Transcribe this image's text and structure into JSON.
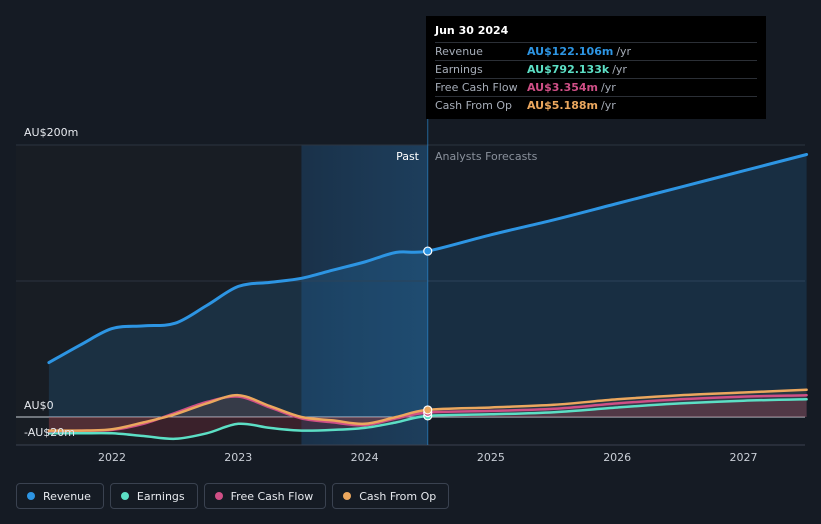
{
  "chart_data": {
    "type": "line",
    "y_axis": {
      "top_label": "AU$200m",
      "zero_label": "AU$0",
      "neg_label": "-AU$20m",
      "ylim": [
        -20,
        200
      ]
    },
    "x_ticks": [
      {
        "label": "2022",
        "x": 2022.0
      },
      {
        "label": "2023",
        "x": 2023.0
      },
      {
        "label": "2024",
        "x": 2024.0
      },
      {
        "label": "2025",
        "x": 2025.0
      },
      {
        "label": "2026",
        "x": 2026.0
      },
      {
        "label": "2027",
        "x": 2027.0
      }
    ],
    "divider_x": 2024.5,
    "forecast_end_x": 2027.5,
    "past_label": "Past",
    "forecast_label": "Analysts Forecasts",
    "series": [
      {
        "name": "Revenue",
        "color": "#2d95e3",
        "points": [
          [
            2021.5,
            40
          ],
          [
            2021.75,
            53
          ],
          [
            2022.0,
            65
          ],
          [
            2022.25,
            67
          ],
          [
            2022.5,
            69
          ],
          [
            2022.75,
            82
          ],
          [
            2023.0,
            96
          ],
          [
            2023.25,
            99
          ],
          [
            2023.5,
            102
          ],
          [
            2023.75,
            108
          ],
          [
            2024.0,
            114
          ],
          [
            2024.25,
            121
          ],
          [
            2024.5,
            122
          ],
          [
            2025.0,
            134
          ],
          [
            2025.5,
            145
          ],
          [
            2026.0,
            157
          ],
          [
            2026.5,
            169
          ],
          [
            2027.0,
            181
          ],
          [
            2027.5,
            193
          ]
        ]
      },
      {
        "name": "Earnings",
        "color": "#5cdfc5",
        "points": [
          [
            2021.5,
            -12
          ],
          [
            2021.75,
            -12
          ],
          [
            2022.0,
            -12
          ],
          [
            2022.25,
            -14
          ],
          [
            2022.5,
            -16
          ],
          [
            2022.75,
            -12
          ],
          [
            2023.0,
            -5
          ],
          [
            2023.25,
            -8
          ],
          [
            2023.5,
            -10
          ],
          [
            2023.75,
            -9.5
          ],
          [
            2024.0,
            -8
          ],
          [
            2024.25,
            -4
          ],
          [
            2024.5,
            0.8
          ],
          [
            2025.0,
            2
          ],
          [
            2025.5,
            3.5
          ],
          [
            2026.0,
            7
          ],
          [
            2026.5,
            10
          ],
          [
            2027.0,
            12
          ],
          [
            2027.5,
            13
          ]
        ]
      },
      {
        "name": "Free Cash Flow",
        "color": "#cf4f86",
        "points": [
          [
            2021.5,
            -10.5
          ],
          [
            2021.75,
            -10
          ],
          [
            2022.0,
            -9.5
          ],
          [
            2022.25,
            -5
          ],
          [
            2022.5,
            3
          ],
          [
            2022.75,
            11
          ],
          [
            2023.0,
            15
          ],
          [
            2023.25,
            7
          ],
          [
            2023.5,
            -1
          ],
          [
            2023.75,
            -4
          ],
          [
            2024.0,
            -6
          ],
          [
            2024.25,
            -1
          ],
          [
            2024.5,
            3.3
          ],
          [
            2025.0,
            4.5
          ],
          [
            2025.5,
            6
          ],
          [
            2026.0,
            10
          ],
          [
            2026.5,
            13
          ],
          [
            2027.0,
            15
          ],
          [
            2027.5,
            16
          ]
        ]
      },
      {
        "name": "Cash From Op",
        "color": "#eba75e",
        "points": [
          [
            2021.5,
            -10
          ],
          [
            2021.75,
            -10
          ],
          [
            2022.0,
            -9
          ],
          [
            2022.25,
            -4
          ],
          [
            2022.5,
            2
          ],
          [
            2022.75,
            10
          ],
          [
            2023.0,
            16
          ],
          [
            2023.25,
            8
          ],
          [
            2023.5,
            0
          ],
          [
            2023.75,
            -2.5
          ],
          [
            2024.0,
            -5
          ],
          [
            2024.25,
            0
          ],
          [
            2024.5,
            5.2
          ],
          [
            2025.0,
            7
          ],
          [
            2025.5,
            9
          ],
          [
            2026.0,
            13
          ],
          [
            2026.5,
            16
          ],
          [
            2027.0,
            18
          ],
          [
            2027.5,
            20
          ]
        ]
      }
    ],
    "tooltip": {
      "date": "Jun 30 2024",
      "rows": [
        {
          "name": "Revenue",
          "value": "AU$122.106m",
          "unit": "/yr",
          "color": "#2d95e3"
        },
        {
          "name": "Earnings",
          "value": "AU$792.133k",
          "unit": "/yr",
          "color": "#5cdfc5"
        },
        {
          "name": "Free Cash Flow",
          "value": "AU$3.354m",
          "unit": "/yr",
          "color": "#cf4f86"
        },
        {
          "name": "Cash From Op",
          "value": "AU$5.188m",
          "unit": "/yr",
          "color": "#eba75e"
        }
      ]
    },
    "legend": [
      {
        "name": "Revenue",
        "color": "#2d95e3"
      },
      {
        "name": "Earnings",
        "color": "#5cdfc5"
      },
      {
        "name": "Free Cash Flow",
        "color": "#cf4f86"
      },
      {
        "name": "Cash From Op",
        "color": "#eba75e"
      }
    ]
  }
}
